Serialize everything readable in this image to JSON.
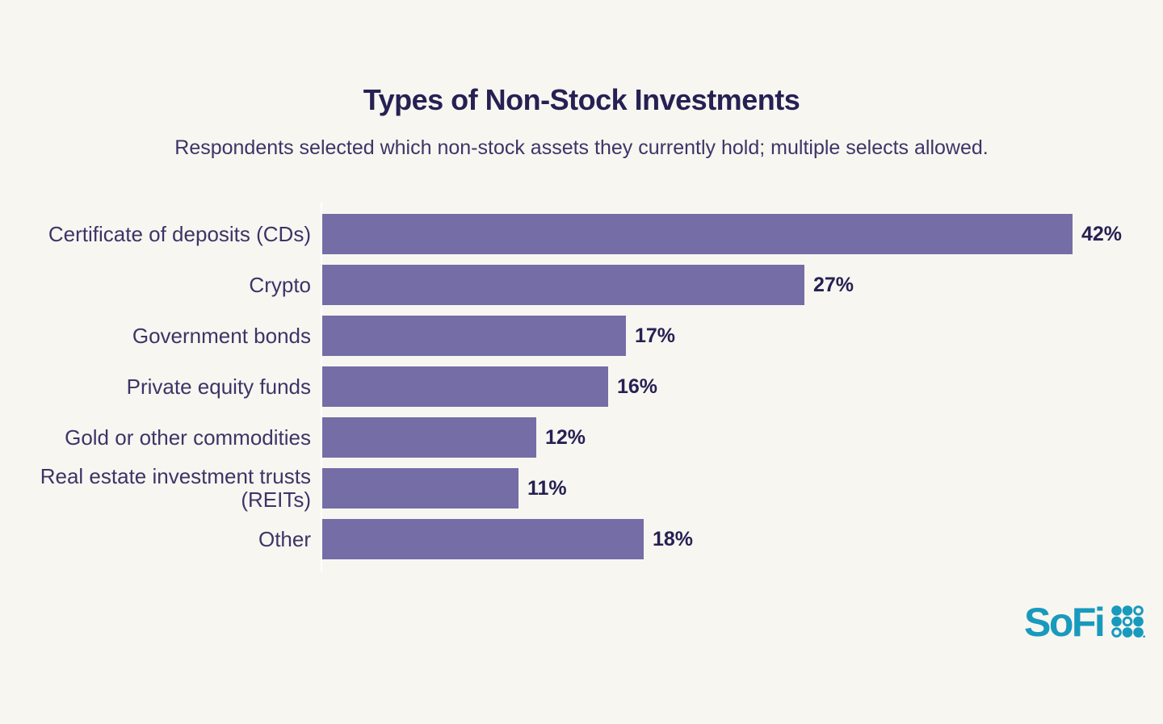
{
  "title": "Types of Non-Stock Investments",
  "subtitle": "Respondents selected which non-stock assets they currently hold; multiple selects allowed.",
  "brand": {
    "wordmark": "SoFi",
    "dots_icon": "sofi-dots-grid-icon"
  },
  "colors": {
    "background": "#F8F6F1",
    "bar": "#756DA6",
    "title_text": "#262153",
    "label_text": "#3C3567",
    "value_text": "#262153",
    "brand_teal": "#189ABD",
    "axis_line": "#FFFFFF"
  },
  "chart_data": {
    "type": "bar",
    "orientation": "horizontal",
    "title": "Types of Non-Stock Investments",
    "subtitle": "Respondents selected which non-stock assets they currently hold; multiple selects allowed.",
    "categories": [
      "Certificate of deposits (CDs)",
      "Crypto",
      "Government bonds",
      "Private equity funds",
      "Gold or other commodities",
      "Real estate investment trusts (REITs)",
      "Other"
    ],
    "values": [
      42,
      27,
      17,
      16,
      12,
      11,
      18
    ],
    "value_labels": [
      "42%",
      "27%",
      "17%",
      "16%",
      "12%",
      "11%",
      "18%"
    ],
    "xlabel": "",
    "ylabel": "",
    "xlim": [
      0,
      45
    ],
    "unit": "%",
    "grid": false,
    "legend": false,
    "value_label_position": "end-of-bar"
  }
}
